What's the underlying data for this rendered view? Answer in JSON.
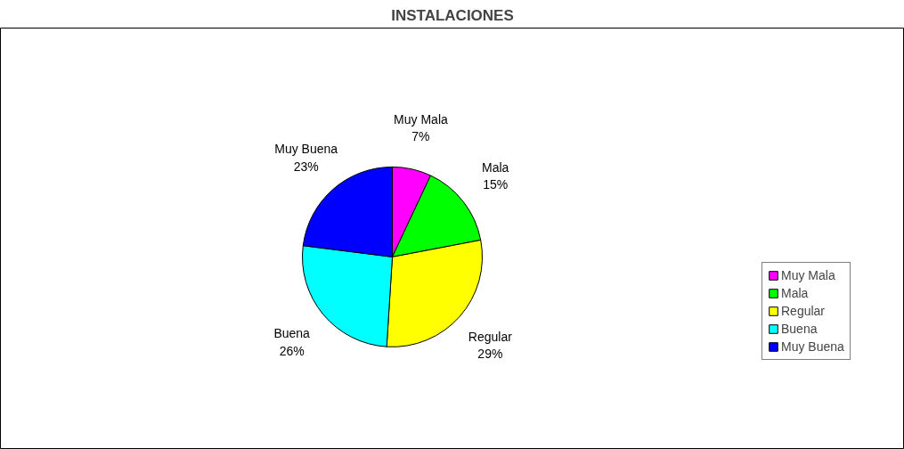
{
  "chart_data": {
    "type": "pie",
    "title": "INSTALACIONES",
    "categories": [
      "Muy Mala",
      "Mala",
      "Regular",
      "Buena",
      "Muy Buena"
    ],
    "values": [
      7,
      15,
      29,
      26,
      23
    ],
    "colors": [
      "#ff00ff",
      "#00ff00",
      "#ffff00",
      "#00ffff",
      "#0000ff"
    ],
    "value_labels": [
      "7%",
      "15%",
      "29%",
      "26%",
      "23%"
    ],
    "legend": "right"
  }
}
